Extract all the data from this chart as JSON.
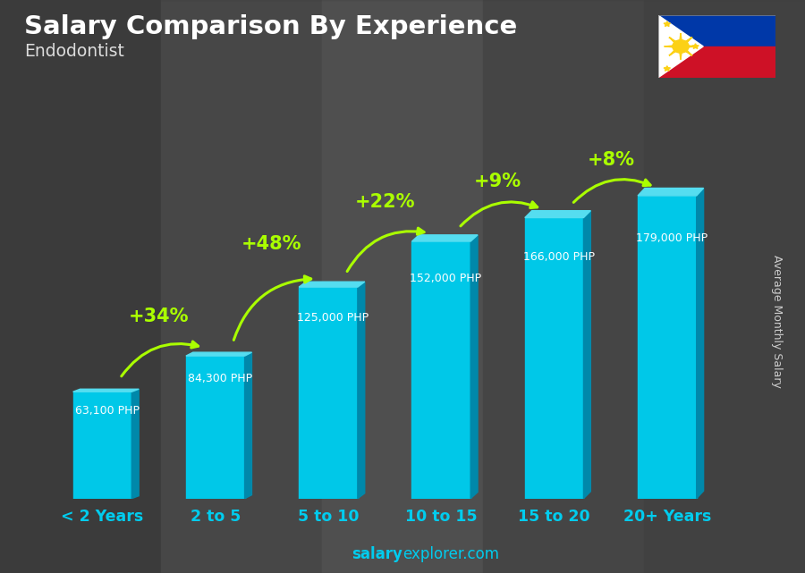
{
  "title": "Salary Comparison By Experience",
  "subtitle": "Endodontist",
  "ylabel": "Average Monthly Salary",
  "watermark_bold": "salary",
  "watermark_regular": "explorer.com",
  "categories": [
    "< 2 Years",
    "2 to 5",
    "5 to 10",
    "10 to 15",
    "15 to 20",
    "20+ Years"
  ],
  "values": [
    63100,
    84300,
    125000,
    152000,
    166000,
    179000
  ],
  "value_labels": [
    "63,100 PHP",
    "84,300 PHP",
    "125,000 PHP",
    "152,000 PHP",
    "166,000 PHP",
    "179,000 PHP"
  ],
  "pct_labels": [
    "+34%",
    "+48%",
    "+22%",
    "+9%",
    "+8%"
  ],
  "bar_color_front": "#00c8e8",
  "bar_color_side": "#0088aa",
  "bar_color_top": "#55ddf0",
  "bg_color": "#4a4a4a",
  "title_color": "#ffffff",
  "subtitle_color": "#dddddd",
  "label_color": "#ffffff",
  "pct_color": "#aaff00",
  "tick_color": "#00ccee",
  "watermark_color": "#00ccee",
  "ylabel_color": "#cccccc",
  "figsize": [
    9.0,
    6.41
  ],
  "ylim": [
    0,
    210000
  ],
  "flag_blue": "#0038a8",
  "flag_red": "#ce1126",
  "flag_yellow": "#fcd116"
}
